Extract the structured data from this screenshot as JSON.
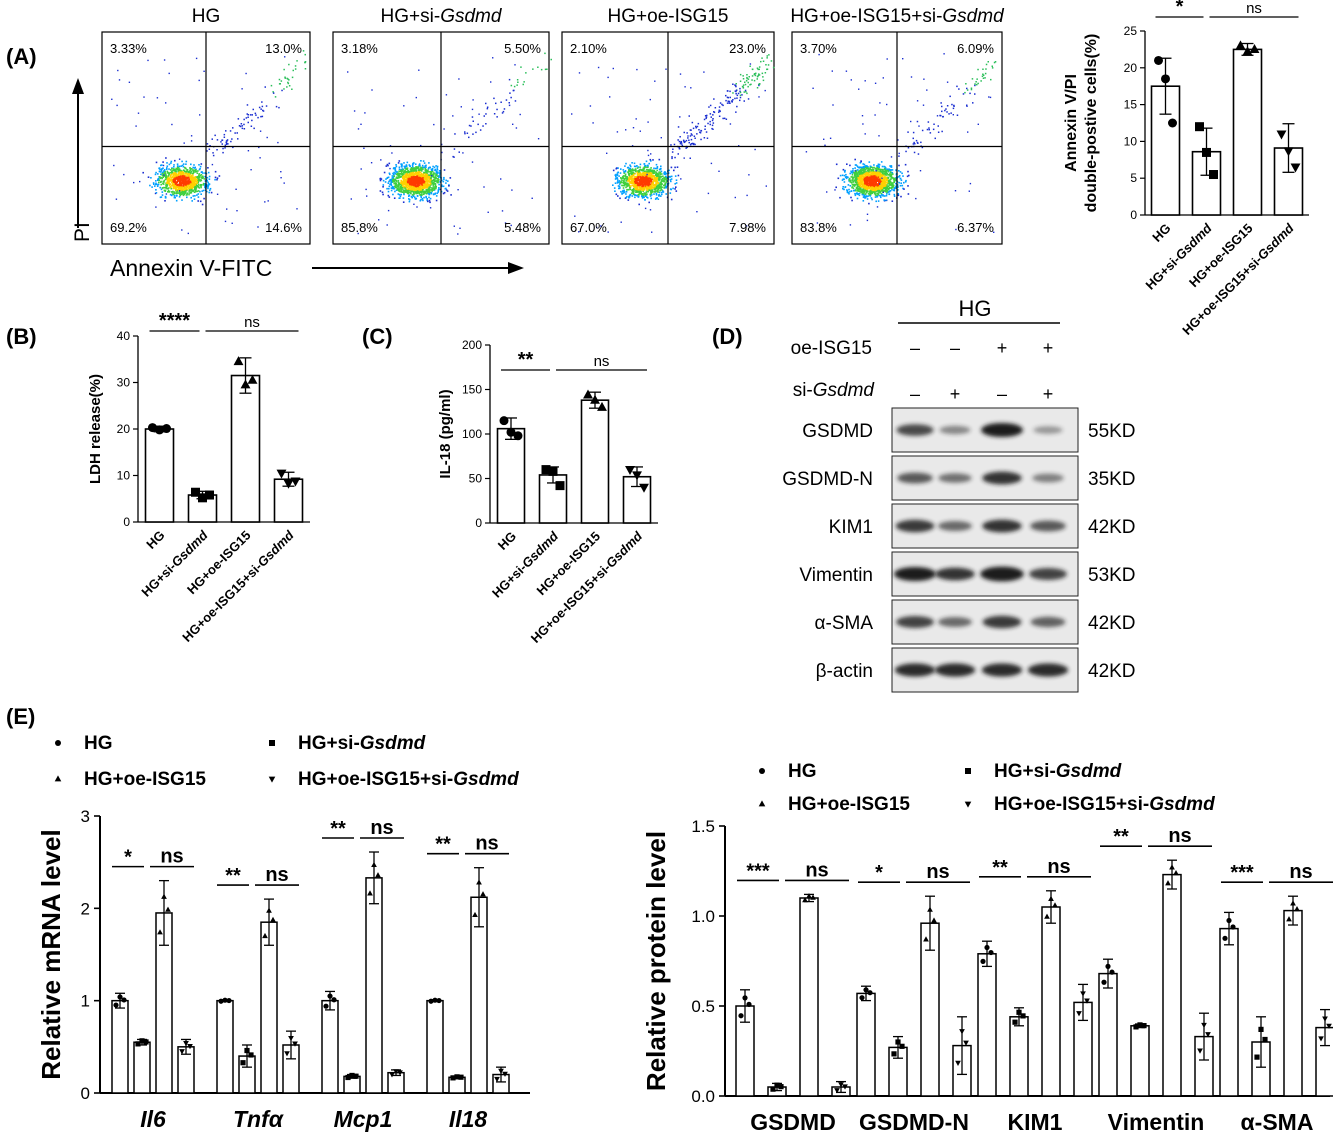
{
  "panels": {
    "A": "(A)",
    "B": "(B)",
    "C": "(C)",
    "D": "(D)",
    "E": "(E)"
  },
  "groups": [
    "HG",
    "HG+si-Gsdmd",
    "HG+oe-ISG15",
    "HG+oe-ISG15+si-Gsdmd"
  ],
  "flow": {
    "x_label": "Annexin V-FITC",
    "y_label": "PI",
    "plots": [
      {
        "title": "HG",
        "q": [
          "3.33%",
          "13.0%",
          "69.2%",
          "14.6%"
        ],
        "density": 0.7,
        "upper": 0.35
      },
      {
        "title": "HG+si-Gsdmd",
        "q": [
          "3.18%",
          "5.50%",
          "85.8%",
          "5.48%"
        ],
        "density": 1.0,
        "upper": 0.2
      },
      {
        "title": "HG+oe-ISG15",
        "q": [
          "2.10%",
          "23.0%",
          "67.0%",
          "7.98%"
        ],
        "density": 0.8,
        "upper": 0.7
      },
      {
        "title": "HG+oe-ISG15+si-Gsdmd",
        "q": [
          "3.70%",
          "6.09%",
          "83.8%",
          "6.37%"
        ],
        "density": 1.0,
        "upper": 0.3
      }
    ]
  },
  "western": {
    "header": "HG",
    "row_labels": [
      "oe-ISG15",
      "si-Gsdmd"
    ],
    "oe": [
      "–",
      "–",
      "+",
      "+"
    ],
    "si": [
      "–",
      "+",
      "–",
      "+"
    ],
    "bands": [
      {
        "name": "GSDMD",
        "kd": "55KD",
        "i": [
          0.7,
          0.3,
          1.0,
          0.2
        ]
      },
      {
        "name": "GSDMD-N",
        "kd": "35KD",
        "i": [
          0.6,
          0.45,
          0.85,
          0.35
        ]
      },
      {
        "name": "KIM1",
        "kd": "42KD",
        "i": [
          0.8,
          0.5,
          0.85,
          0.6
        ]
      },
      {
        "name": "Vimentin",
        "kd": "53KD",
        "i": [
          1.0,
          0.85,
          1.1,
          0.75
        ]
      },
      {
        "name": "α-SMA",
        "kd": "42KD",
        "i": [
          0.75,
          0.5,
          0.8,
          0.55
        ]
      },
      {
        "name": "β-actin",
        "kd": "42KD",
        "i": [
          0.9,
          0.9,
          0.9,
          0.9
        ]
      }
    ]
  },
  "chart_data": [
    {
      "id": "A",
      "type": "bar",
      "categories": [
        "HG",
        "HG+si-Gsdmd",
        "HG+oe-ISG15",
        "HG+oe-ISG15+si-Gsdmd"
      ],
      "values": [
        17.5,
        8.6,
        22.5,
        9.1
      ],
      "errors": [
        3.8,
        3.2,
        0.8,
        3.3
      ],
      "points": [
        [
          21,
          18.5,
          12.5
        ],
        [
          12,
          8.5,
          5.5
        ],
        [
          23,
          22.2,
          22.5
        ],
        [
          11,
          8.7,
          6.5
        ]
      ],
      "ylabel": "Annexin V/PI double-postive cells(%)",
      "ylim": [
        0,
        25
      ],
      "yticks": [
        0,
        5,
        10,
        15,
        20,
        25
      ],
      "sig": [
        {
          "from": 0,
          "to": 1,
          "label": "*"
        },
        {
          "from": 1,
          "to": 3,
          "label": "ns"
        }
      ]
    },
    {
      "id": "B",
      "type": "bar",
      "categories": [
        "HG",
        "HG+si-Gsdmd",
        "HG+oe-ISG15",
        "HG+oe-ISG15+si-Gsdmd"
      ],
      "values": [
        20,
        5.8,
        31.5,
        9.2
      ],
      "errors": [
        0.6,
        0.8,
        3.8,
        1.5
      ],
      "points": [
        [
          20.3,
          19.8,
          20.1
        ],
        [
          6.4,
          5.2,
          5.8
        ],
        [
          34.5,
          29.5,
          30.5
        ],
        [
          10.5,
          8.3,
          8.8
        ]
      ],
      "ylabel": "LDH release(%)",
      "ylim": [
        0,
        40
      ],
      "yticks": [
        0,
        10,
        20,
        30,
        40
      ],
      "sig": [
        {
          "from": 0,
          "to": 1,
          "label": "****"
        },
        {
          "from": 1,
          "to": 3,
          "label": "ns"
        }
      ]
    },
    {
      "id": "C",
      "type": "bar",
      "categories": [
        "HG",
        "HG+si-Gsdmd",
        "HG+oe-ISG15",
        "HG+oe-ISG15+si-Gsdmd"
      ],
      "values": [
        106,
        54,
        138,
        52
      ],
      "errors": [
        12,
        9,
        9,
        11
      ],
      "points": [
        [
          115,
          102,
          98
        ],
        [
          60,
          58,
          42
        ],
        [
          144,
          138,
          130
        ],
        [
          60,
          54,
          40
        ]
      ],
      "ylabel": "IL-18 (pg/ml)",
      "ylim": [
        0,
        200
      ],
      "yticks": [
        0,
        50,
        100,
        150,
        200
      ],
      "sig": [
        {
          "from": 0,
          "to": 1,
          "label": "**"
        },
        {
          "from": 1,
          "to": 3,
          "label": "ns"
        }
      ]
    },
    {
      "id": "E-mRNA",
      "type": "bar",
      "categories": [
        "Il6",
        "Tnfα",
        "Mcp1",
        "Il18"
      ],
      "series": [
        {
          "name": "HG",
          "values": [
            1.0,
            1.0,
            1.0,
            1.0
          ],
          "errors": [
            0.08,
            0.01,
            0.1,
            0.01
          ]
        },
        {
          "name": "HG+si-Gsdmd",
          "values": [
            0.55,
            0.4,
            0.18,
            0.17
          ],
          "errors": [
            0.03,
            0.12,
            0.02,
            0.01
          ]
        },
        {
          "name": "HG+oe-ISG15",
          "values": [
            1.95,
            1.85,
            2.33,
            2.12
          ],
          "errors": [
            0.35,
            0.25,
            0.28,
            0.32
          ]
        },
        {
          "name": "HG+oe-ISG15+si-Gsdmd",
          "values": [
            0.5,
            0.52,
            0.22,
            0.2
          ],
          "errors": [
            0.08,
            0.15,
            0.03,
            0.08
          ]
        }
      ],
      "ylabel": "Relative mRNA level",
      "ylim": [
        0,
        3
      ],
      "yticks": [
        0,
        1,
        2,
        3
      ],
      "sig": [
        [
          "*",
          "ns"
        ],
        [
          "**",
          "ns"
        ],
        [
          "**",
          "ns"
        ],
        [
          "**",
          "ns"
        ]
      ]
    },
    {
      "id": "E-protein",
      "type": "bar",
      "categories": [
        "GSDMD",
        "GSDMD-N",
        "KIM1",
        "Vimentin",
        "α-SMA"
      ],
      "series": [
        {
          "name": "HG",
          "values": [
            0.5,
            0.57,
            0.79,
            0.68,
            0.93
          ],
          "errors": [
            0.09,
            0.04,
            0.07,
            0.08,
            0.09
          ]
        },
        {
          "name": "HG+si-Gsdmd",
          "values": [
            0.05,
            0.27,
            0.44,
            0.39,
            0.3
          ],
          "errors": [
            0.02,
            0.06,
            0.05,
            0.01,
            0.14
          ]
        },
        {
          "name": "HG+oe-ISG15",
          "values": [
            1.1,
            0.96,
            1.05,
            1.23,
            1.03
          ],
          "errors": [
            0.02,
            0.15,
            0.09,
            0.08,
            0.08
          ]
        },
        {
          "name": "HG+oe-ISG15+si-Gsdmd",
          "values": [
            0.05,
            0.28,
            0.52,
            0.33,
            0.38
          ],
          "errors": [
            0.03,
            0.16,
            0.1,
            0.13,
            0.1
          ]
        }
      ],
      "ylabel": "Relative protein level",
      "ylim": [
        0,
        1.5
      ],
      "yticks": [
        0.0,
        0.5,
        1.0,
        1.5
      ],
      "sig": [
        [
          "***",
          "ns"
        ],
        [
          "*",
          "ns"
        ],
        [
          "**",
          "ns"
        ],
        [
          "**",
          "ns"
        ],
        [
          "***",
          "ns"
        ]
      ]
    }
  ],
  "legend": [
    "HG",
    "HG+si-Gsdmd",
    "HG+oe-ISG15",
    "HG+oe-ISG15+si-Gsdmd"
  ],
  "colors": {
    "ink": "#000000",
    "bar_fill": "#ffffff",
    "band": "#1a1a1a",
    "gel": "#e9e9e9"
  }
}
